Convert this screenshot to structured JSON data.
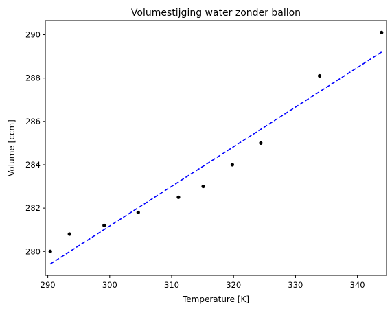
{
  "chart_data": {
    "type": "scatter",
    "title": "Volumestijging water zonder ballon",
    "xlabel": "Temperature [K]",
    "ylabel": "Volume [ccm]",
    "xlim": [
      289.6,
      344.7
    ],
    "ylim": [
      278.9,
      290.65
    ],
    "xticks": [
      290,
      300,
      310,
      320,
      330,
      340
    ],
    "yticks": [
      280,
      282,
      284,
      286,
      288,
      290
    ],
    "grid": false,
    "legend": "none",
    "points": {
      "color": "#000000",
      "x": [
        290.4,
        293.5,
        299.1,
        304.6,
        311.1,
        315.1,
        319.8,
        324.4,
        333.9,
        343.9
      ],
      "y": [
        280.0,
        280.8,
        281.2,
        281.8,
        282.5,
        283.0,
        284.0,
        285.0,
        288.1,
        290.1
      ]
    },
    "fit_line": {
      "style": "dashed",
      "color": "#0000ff",
      "x": [
        290.4,
        343.9
      ],
      "y": [
        279.42,
        289.2
      ]
    }
  }
}
